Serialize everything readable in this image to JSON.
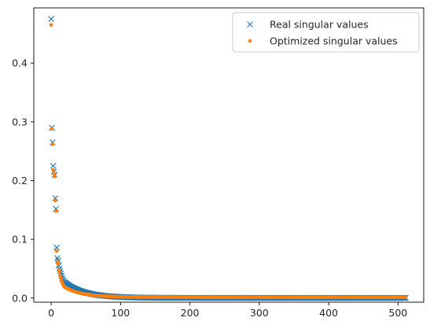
{
  "chart_data": {
    "type": "scatter",
    "title": "",
    "xlabel": "",
    "ylabel": "",
    "xlim": [
      -25,
      537
    ],
    "ylim": [
      -0.007,
      0.494
    ],
    "x_ticks": [
      0,
      100,
      200,
      300,
      400,
      500
    ],
    "x_tick_labels": [
      "0",
      "100",
      "200",
      "300",
      "400",
      "500"
    ],
    "y_ticks": [
      0.0,
      0.1,
      0.2,
      0.3,
      0.4
    ],
    "y_tick_labels": [
      "0.0",
      "0.1",
      "0.2",
      "0.3",
      "0.4"
    ],
    "grid": false,
    "legend_position": "top-right",
    "n_points": 512,
    "series": [
      {
        "name": "Real singular values",
        "marker": "x",
        "color": "#1f77b4",
        "head_values": [
          0.475,
          0.29,
          0.265,
          0.225,
          0.215,
          0.21,
          0.17,
          0.152,
          0.086,
          0.068,
          0.064,
          0.055,
          0.05,
          0.046,
          0.042,
          0.038,
          0.034,
          0.031,
          0.029,
          0.027
        ],
        "tail_decay": {
          "start": 0.027,
          "end": 0.0003,
          "rate": 0.035
        }
      },
      {
        "name": "Optimized singular values",
        "marker": "o",
        "color": "#ff7f0e",
        "head_values": [
          0.465,
          0.288,
          0.262,
          0.218,
          0.212,
          0.207,
          0.166,
          0.148,
          0.08,
          0.062,
          0.058,
          0.048,
          0.044,
          0.038,
          0.034,
          0.03,
          0.026,
          0.023,
          0.021,
          0.019
        ],
        "tail_decay": {
          "start": 0.019,
          "end": 0.0015,
          "rate": 0.04
        }
      }
    ]
  }
}
